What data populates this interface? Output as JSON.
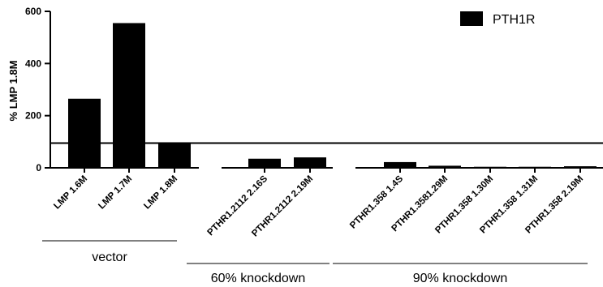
{
  "chart_data": {
    "type": "bar",
    "ylabel": "% LMP 1.8M",
    "ylim": [
      0,
      600
    ],
    "yticks": [
      "0",
      "200",
      "400",
      "600"
    ],
    "yticks_values": [
      0,
      200,
      400,
      600
    ],
    "categories": [
      "LMP 1.6M",
      "LMP 1.7M",
      "LMP 1.8M",
      "PTHR1.2112 2.16S",
      "PTHR1.2112 2.19M",
      "PTHR1.358 1.4S",
      "PTHR1.3581.29M",
      "PTHR1.358 1.30M",
      "PTHR1.358 1.31M",
      "PTHR1.358 2.19M"
    ],
    "series": [
      {
        "name": "PTH1R",
        "values": [
          265,
          555,
          98,
          35,
          40,
          22,
          8,
          4,
          4,
          6
        ]
      }
    ],
    "reference_line": 95,
    "groups": [
      {
        "label": "vector",
        "from": 0,
        "to": 2
      },
      {
        "label": "60% knockdown",
        "from": 3,
        "to": 4
      },
      {
        "label": "90% knockdown",
        "from": 5,
        "to": 9
      }
    ],
    "legend_position": "top-right",
    "grid": false,
    "bar_color": "#000000"
  }
}
